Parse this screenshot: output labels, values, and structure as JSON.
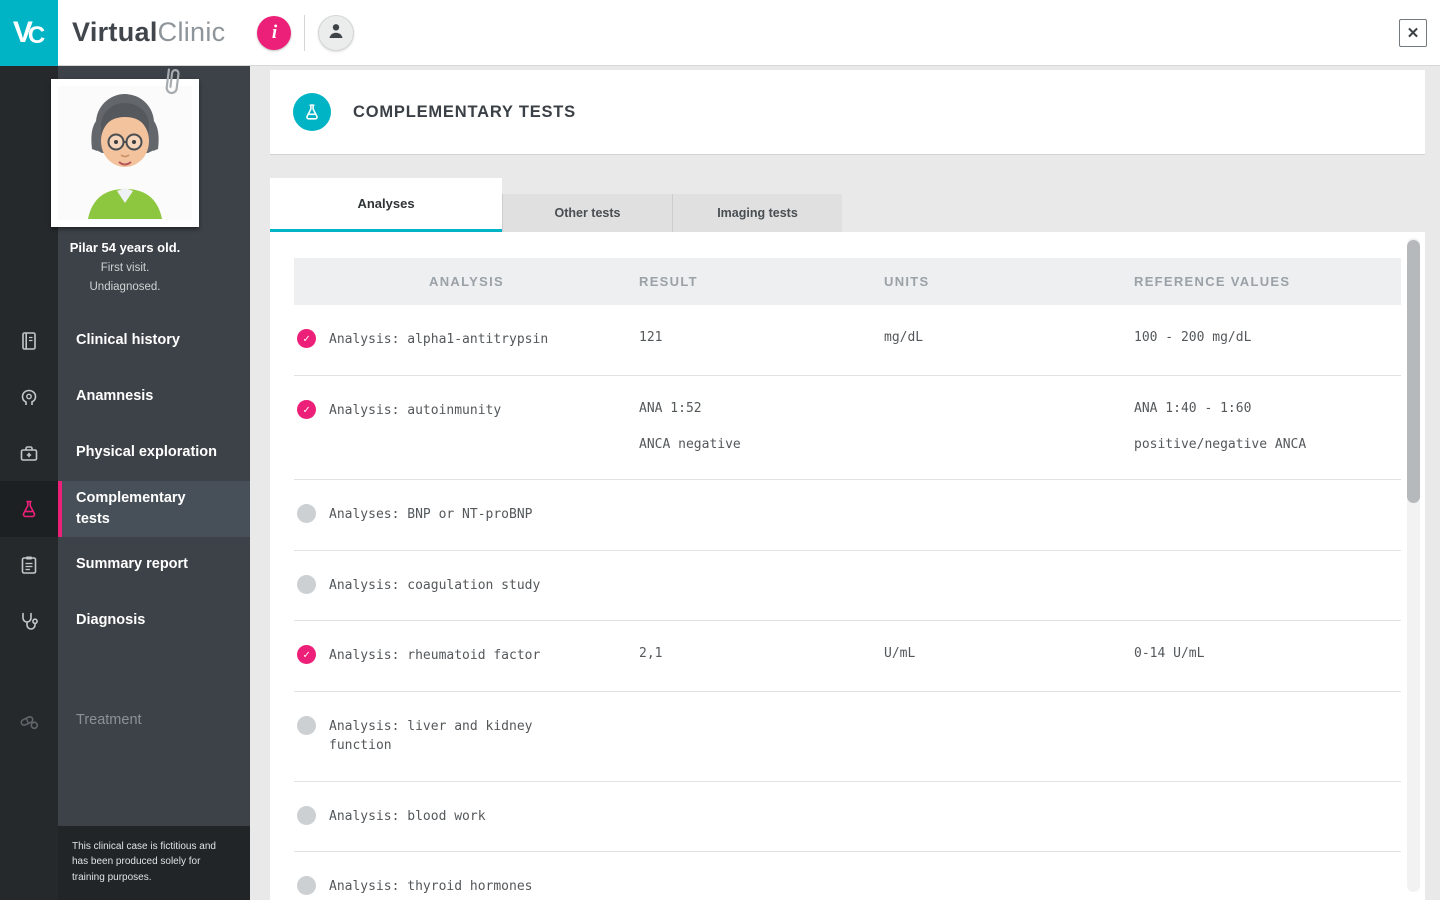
{
  "app": {
    "logo_v": "V",
    "logo_c": "C",
    "brand_bold": "Virtual",
    "brand_light": "Clinic"
  },
  "topbar": {
    "info_label": "i",
    "close_icon": "✕"
  },
  "patient": {
    "name_line": "Pilar 54 years old.",
    "visit_line": "First visit.",
    "status_line": "Undiagnosed."
  },
  "sidebar": {
    "items": [
      {
        "label": "Clinical history",
        "icon": "book-icon",
        "state": "normal",
        "gap": false
      },
      {
        "label": "Anamnesis",
        "icon": "head-icon",
        "state": "normal",
        "gap": false
      },
      {
        "label": "Physical exploration",
        "icon": "medical-bag-icon",
        "state": "normal",
        "gap": false
      },
      {
        "label": "Complementary tests",
        "icon": "flask-icon",
        "state": "active",
        "gap": false
      },
      {
        "label": "Summary report",
        "icon": "report-icon",
        "state": "normal",
        "gap": false
      },
      {
        "label": "Diagnosis",
        "icon": "stethoscope-icon",
        "state": "normal",
        "gap": false
      },
      {
        "label": "Treatment",
        "icon": "pills-icon",
        "state": "disabled",
        "gap": true
      }
    ],
    "disclaimer": "This clinical case is fictitious and has been produced solely for training purposes."
  },
  "main": {
    "title": "COMPLEMENTARY TESTS",
    "tabs": [
      {
        "label": "Analyses",
        "active": true
      },
      {
        "label": "Other tests",
        "active": false
      },
      {
        "label": "Imaging tests",
        "active": false
      }
    ],
    "table": {
      "headers": [
        "ANALYSIS",
        "RESULT",
        "UNITS",
        "REFERENCE VALUES"
      ],
      "rows": [
        {
          "checked": true,
          "analysis": "Analysis: alpha1-antitrypsin",
          "result": [
            "121"
          ],
          "units": "mg/dL",
          "reference": [
            "100 - 200 mg/dL"
          ]
        },
        {
          "checked": true,
          "analysis": "Analysis: autoinmunity",
          "result": [
            "ANA 1:52",
            "ANCA negative"
          ],
          "units": "",
          "reference": [
            "ANA 1:40 - 1:60",
            "positive/negative ANCA"
          ]
        },
        {
          "checked": false,
          "analysis": "Analyses: BNP or NT-proBNP",
          "result": [],
          "units": "",
          "reference": []
        },
        {
          "checked": false,
          "analysis": "Analysis: coagulation study",
          "result": [],
          "units": "",
          "reference": []
        },
        {
          "checked": true,
          "analysis": "Analysis: rheumatoid factor",
          "result": [
            "2,1"
          ],
          "units": "U/mL",
          "reference": [
            "0-14 U/mL"
          ]
        },
        {
          "checked": false,
          "analysis": "Analysis: liver and kidney function",
          "result": [],
          "units": "",
          "reference": []
        },
        {
          "checked": false,
          "analysis": "Analysis: blood work",
          "result": [],
          "units": "",
          "reference": []
        },
        {
          "checked": false,
          "analysis": "Analysis: thyroid hormones",
          "result": [],
          "units": "",
          "reference": []
        }
      ]
    }
  },
  "colors": {
    "teal": "#00b4c5",
    "pink": "#ed2079",
    "sidebar_dark": "#26292c",
    "sidebar_panel": "#3c4247"
  }
}
